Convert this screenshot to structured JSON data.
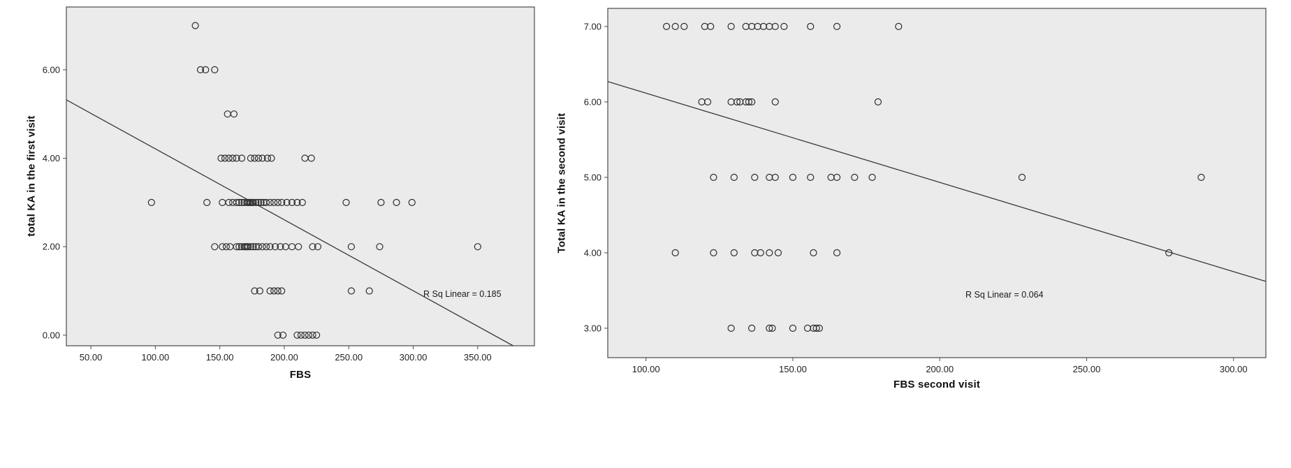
{
  "figure": {
    "background": "#ffffff"
  },
  "chart_data": [
    {
      "type": "scatter",
      "title": "",
      "xlabel": "FBS",
      "ylabel": "total KA in the first visit",
      "annotation": "R Sq Linear = 0.185",
      "r_sq_linear": 0.185,
      "x_ticks": [
        50,
        100,
        150,
        200,
        250,
        300,
        350
      ],
      "x_tick_labels": [
        "50.00",
        "100.00",
        "150.00",
        "200.00",
        "250.00",
        "300.00",
        "350.00"
      ],
      "y_ticks": [
        0,
        2,
        4,
        6
      ],
      "y_tick_labels": [
        "0.00",
        "2.00",
        "4.00",
        "6.00"
      ],
      "xlim": [
        31,
        394
      ],
      "ylim": [
        -0.24,
        7.42
      ],
      "grid": false,
      "legend": "none",
      "plot_bg": "#ebebeb",
      "frame_color": "#4a4a4a",
      "marker_color": "#2e2e2e",
      "line_color": "#3a3a3a",
      "regression_line": {
        "x1": 31,
        "y1": 5.32,
        "x2": 377.5,
        "y2": -0.24
      },
      "points": [
        {
          "y": 7,
          "x": [
            131
          ]
        },
        {
          "y": 6,
          "x": [
            135,
            139,
            146
          ]
        },
        {
          "y": 5,
          "x": [
            156,
            161
          ]
        },
        {
          "y": 4,
          "x": [
            151,
            154,
            157,
            160,
            163,
            167,
            174,
            177,
            180,
            183,
            187,
            190,
            216,
            221
          ]
        },
        {
          "y": 3,
          "x": [
            97,
            140,
            152,
            157,
            160,
            163,
            165,
            167,
            169,
            171,
            172,
            173,
            174,
            175,
            176,
            178,
            180,
            182,
            184,
            186,
            189,
            192,
            195,
            198,
            202,
            206,
            210,
            214,
            248,
            275,
            287,
            299
          ]
        },
        {
          "y": 2,
          "x": [
            146,
            152,
            155,
            158,
            163,
            165,
            167,
            169,
            170,
            171,
            172,
            174,
            176,
            178,
            180,
            183,
            186,
            189,
            193,
            197,
            201,
            206,
            211,
            222,
            226,
            252,
            274,
            350
          ]
        },
        {
          "y": 1,
          "x": [
            177,
            181,
            189,
            192,
            195,
            198,
            252,
            266
          ]
        },
        {
          "y": 0,
          "x": [
            195,
            199,
            210,
            213,
            216,
            219,
            222,
            225
          ]
        }
      ]
    },
    {
      "type": "scatter",
      "title": "",
      "xlabel": "FBS second visit",
      "ylabel": "Total KA in the second visit",
      "annotation": "R Sq Linear = 0.064",
      "r_sq_linear": 0.064,
      "x_ticks": [
        100,
        150,
        200,
        250,
        300
      ],
      "x_tick_labels": [
        "100.00",
        "150.00",
        "200.00",
        "250.00",
        "300.00"
      ],
      "y_ticks": [
        3,
        4,
        5,
        6,
        7
      ],
      "y_tick_labels": [
        "3.00",
        "4.00",
        "5.00",
        "6.00",
        "7.00"
      ],
      "xlim": [
        87,
        311
      ],
      "ylim": [
        2.61,
        7.24
      ],
      "grid": false,
      "legend": "none",
      "plot_bg": "#ebebeb",
      "frame_color": "#4a4a4a",
      "marker_color": "#2e2e2e",
      "line_color": "#3a3a3a",
      "regression_line": {
        "x1": 87,
        "y1": 6.27,
        "x2": 311,
        "y2": 3.62
      },
      "points": [
        {
          "y": 7,
          "x": [
            107,
            110,
            113,
            120,
            122,
            129,
            134,
            136,
            138,
            140,
            142,
            144,
            147,
            156,
            165,
            186
          ]
        },
        {
          "y": 6,
          "x": [
            119,
            121,
            129,
            131,
            132,
            134,
            135,
            136,
            144,
            179
          ]
        },
        {
          "y": 5,
          "x": [
            123,
            130,
            137,
            142,
            144,
            150,
            156,
            163,
            165,
            171,
            177,
            228,
            289
          ]
        },
        {
          "y": 4,
          "x": [
            110,
            123,
            130,
            137,
            139,
            142,
            145,
            157,
            165,
            278
          ]
        },
        {
          "y": 3,
          "x": [
            129,
            136,
            142,
            143,
            150,
            155,
            157,
            158,
            159
          ]
        }
      ]
    }
  ]
}
